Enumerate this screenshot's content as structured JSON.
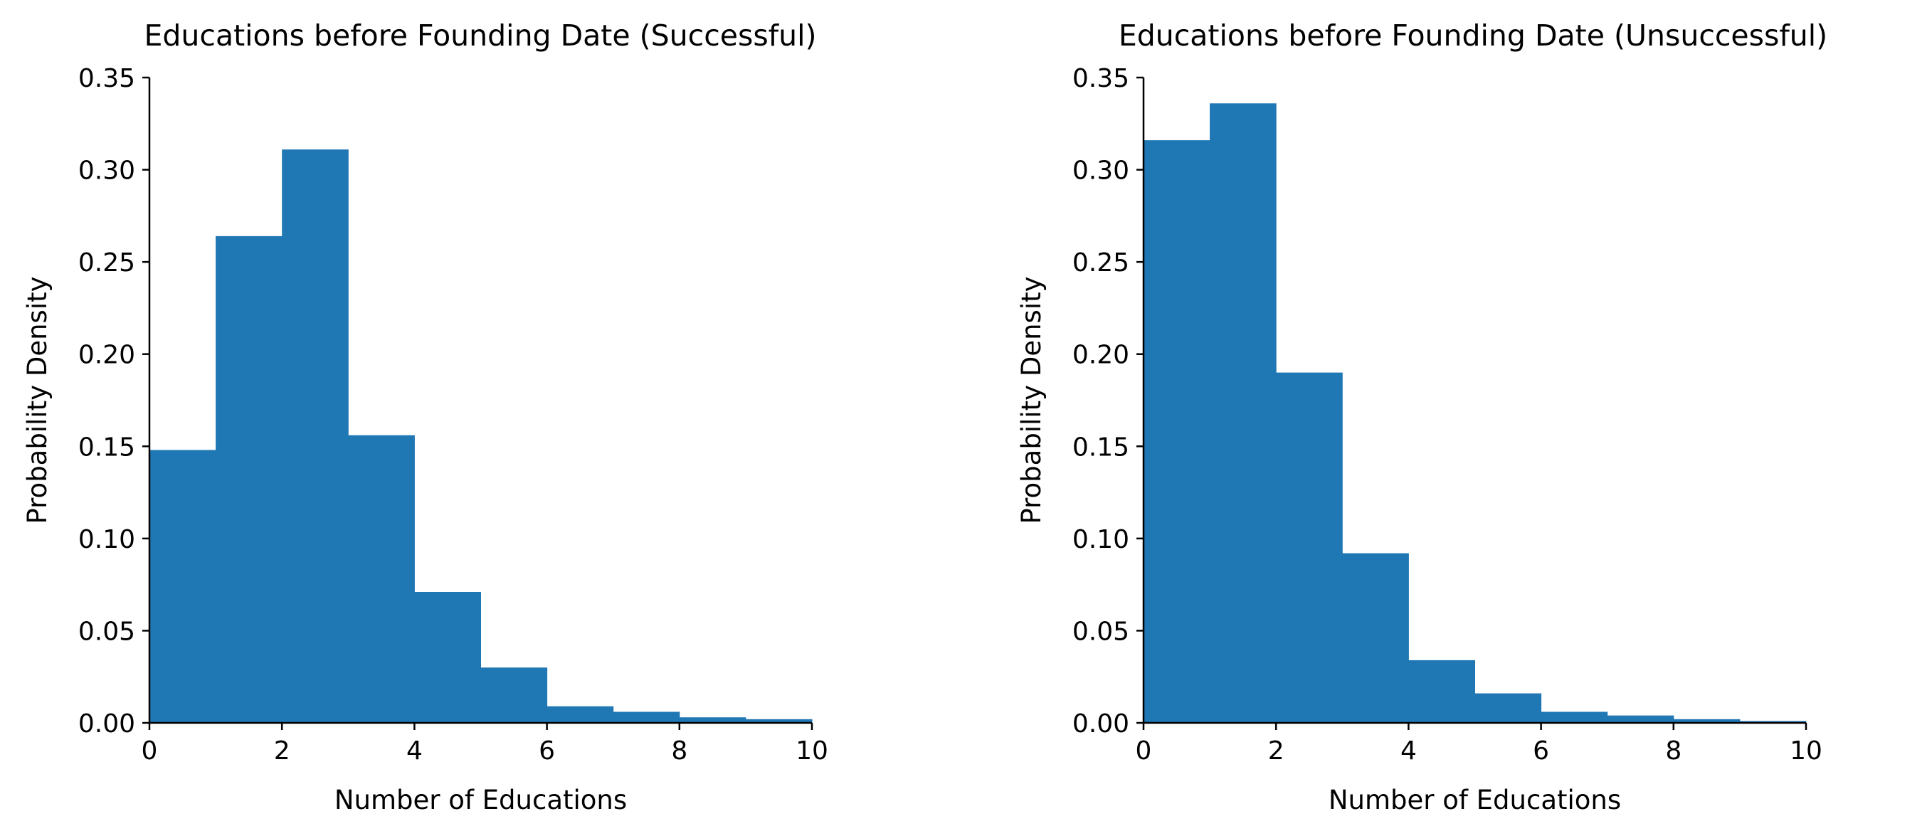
{
  "chart_data": [
    {
      "type": "bar",
      "title": "Educations before Founding Date (Successful)",
      "xlabel": "Number of Educations",
      "ylabel": "Probability Density",
      "bin_edges": [
        0,
        1,
        2,
        3,
        4,
        5,
        6,
        7,
        8,
        9,
        10
      ],
      "values": [
        0.148,
        0.264,
        0.311,
        0.156,
        0.071,
        0.03,
        0.009,
        0.006,
        0.003,
        0.002
      ],
      "xlim": [
        0,
        10
      ],
      "ylim": [
        0,
        0.35
      ],
      "xticks": [
        0,
        2,
        4,
        6,
        8,
        10
      ],
      "xtick_labels": [
        "0",
        "2",
        "4",
        "6",
        "8",
        "10"
      ],
      "yticks": [
        0,
        0.05,
        0.1,
        0.15,
        0.2,
        0.25,
        0.3,
        0.35
      ],
      "ytick_labels": [
        "0.00",
        "0.05",
        "0.10",
        "0.15",
        "0.20",
        "0.25",
        "0.30",
        "0.35"
      ],
      "color": "#1f77b4",
      "grid": false,
      "legend": false
    },
    {
      "type": "bar",
      "title": "Educations before Founding Date (Unsuccessful)",
      "xlabel": "Number of Educations",
      "ylabel": "Probability Density",
      "bin_edges": [
        0,
        1,
        2,
        3,
        4,
        5,
        6,
        7,
        8,
        9,
        10
      ],
      "values": [
        0.316,
        0.336,
        0.19,
        0.092,
        0.034,
        0.016,
        0.006,
        0.004,
        0.002,
        0.001
      ],
      "xlim": [
        0,
        10
      ],
      "ylim": [
        0,
        0.35
      ],
      "xticks": [
        0,
        2,
        4,
        6,
        8,
        10
      ],
      "xtick_labels": [
        "0",
        "2",
        "4",
        "6",
        "8",
        "10"
      ],
      "yticks": [
        0,
        0.05,
        0.1,
        0.15,
        0.2,
        0.25,
        0.3,
        0.35
      ],
      "ytick_labels": [
        "0.00",
        "0.05",
        "0.10",
        "0.15",
        "0.20",
        "0.25",
        "0.30",
        "0.35"
      ],
      "color": "#1f77b4",
      "grid": false,
      "legend": false
    }
  ]
}
